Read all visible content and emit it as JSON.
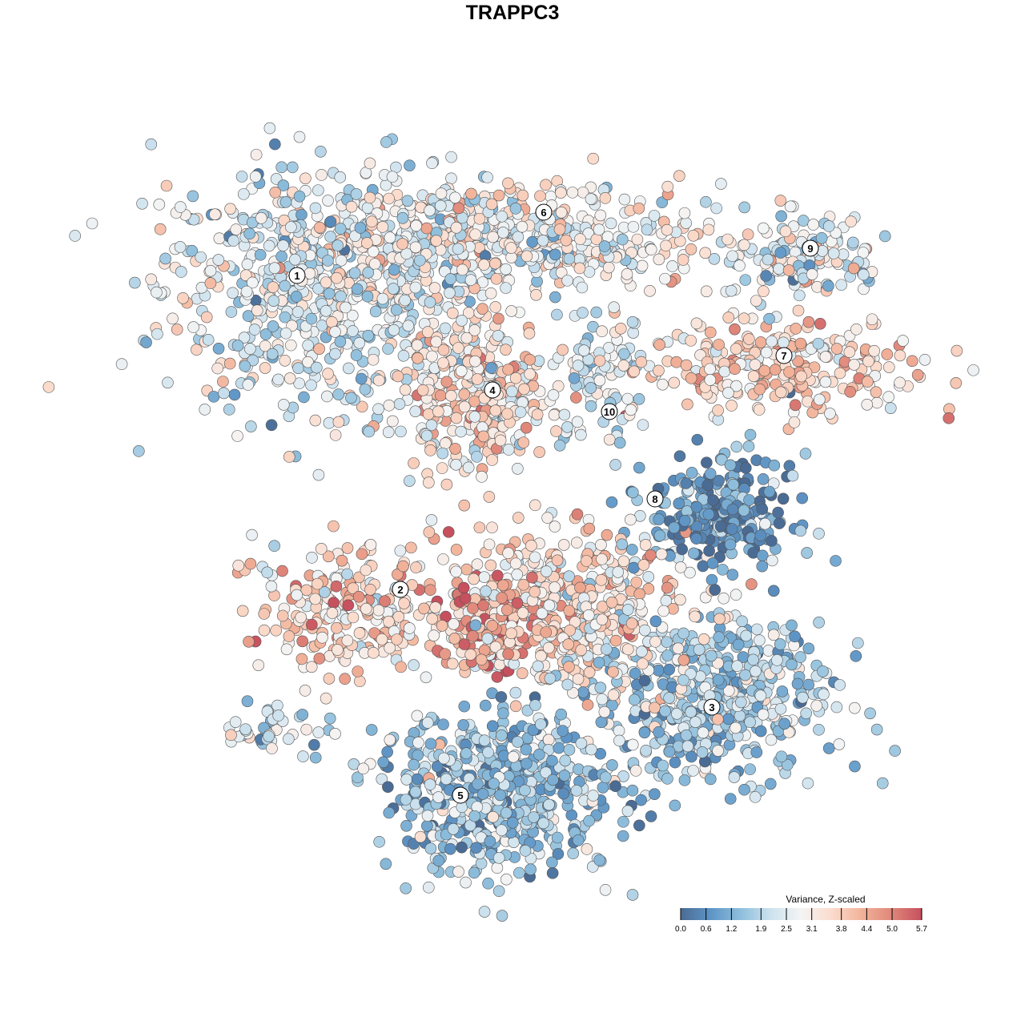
{
  "chart_data": {
    "type": "scatter",
    "title": "TRAPPC3",
    "xlabel": "",
    "ylabel": "",
    "xlim": [
      -45,
      50
    ],
    "ylim": [
      -46,
      46
    ],
    "grid": false,
    "colorbar": {
      "title": "Variance, Z-scaled",
      "ticks": [
        "0.0",
        "0.6",
        "1.2",
        "1.9",
        "2.5",
        "3.1",
        "3.8",
        "4.4",
        "5.0",
        "5.7"
      ],
      "range": [
        0.0,
        5.7
      ],
      "colors": [
        "#4a6b94",
        "#5e95c6",
        "#8fbfdc",
        "#cde2ee",
        "#f4f4f4",
        "#fbdccd",
        "#f2b39a",
        "#e0877a",
        "#c6505e"
      ],
      "placement": "bottom-right"
    },
    "note": "point clouds generated from per-cluster centre (data units), spread, count and mean scaled variance",
    "clusters": [
      {
        "label": "1",
        "lx": -26.9,
        "ly": 29.6,
        "cx": -24,
        "cy": 28,
        "sx": 10,
        "sy": 8,
        "n": 620,
        "mean": 2.4
      },
      {
        "label": "6",
        "lx": 3.9,
        "ly": 37.5,
        "cx": -2,
        "cy": 34,
        "sx": 14,
        "sy": 3.5,
        "n": 560,
        "mean": 2.8
      },
      {
        "label": "9",
        "lx": 37.2,
        "ly": 33,
        "cx": 36,
        "cy": 32,
        "sx": 5,
        "sy": 2.8,
        "n": 140,
        "mean": 2.5
      },
      {
        "label": "7",
        "lx": 33.9,
        "ly": 19.6,
        "cx": 33,
        "cy": 18,
        "sx": 9,
        "sy": 3,
        "n": 260,
        "mean": 3.6
      },
      {
        "label": "4",
        "lx": -2.5,
        "ly": 15.3,
        "cx": -4.5,
        "cy": 15,
        "sx": 4.5,
        "sy": 4.8,
        "n": 320,
        "mean": 3.3
      },
      {
        "label": "10",
        "lx": 12.1,
        "ly": 12.6,
        "cx": 11,
        "cy": 16,
        "sx": 3,
        "sy": 4,
        "n": 90,
        "mean": 2.2
      },
      {
        "label": "8",
        "lx": 17.8,
        "ly": 1.7,
        "cx": 26,
        "cy": 0,
        "sx": 4.5,
        "sy": 3.5,
        "n": 260,
        "mean": 0.7
      },
      {
        "label": "2",
        "lx": -14,
        "ly": -9.6,
        "cx": -21,
        "cy": -12,
        "sx": 5.5,
        "sy": 4,
        "n": 220,
        "mean": 3.6
      },
      {
        "label": "3",
        "lx": 24.9,
        "ly": -24.3,
        "cx": 25,
        "cy": -23,
        "sx": 7.5,
        "sy": 5,
        "n": 520,
        "mean": 1.8
      },
      {
        "label": "5",
        "lx": -6.5,
        "ly": -35.3,
        "cx": -2,
        "cy": -35,
        "sx": 7.5,
        "sy": 5,
        "n": 540,
        "mean": 1.5
      },
      {
        "label": "",
        "lx": null,
        "ly": null,
        "cx": 6,
        "cy": -12,
        "sx": 8,
        "sy": 5,
        "n": 520,
        "mean": 3.4
      },
      {
        "label": "",
        "lx": null,
        "ly": null,
        "cx": -3.5,
        "cy": -14.5,
        "sx": 2.8,
        "sy": 2.5,
        "n": 110,
        "mean": 4.7
      },
      {
        "label": "",
        "lx": null,
        "ly": null,
        "cx": -29,
        "cy": -27,
        "sx": 3.5,
        "sy": 1.5,
        "n": 40,
        "mean": 2.3
      }
    ]
  }
}
